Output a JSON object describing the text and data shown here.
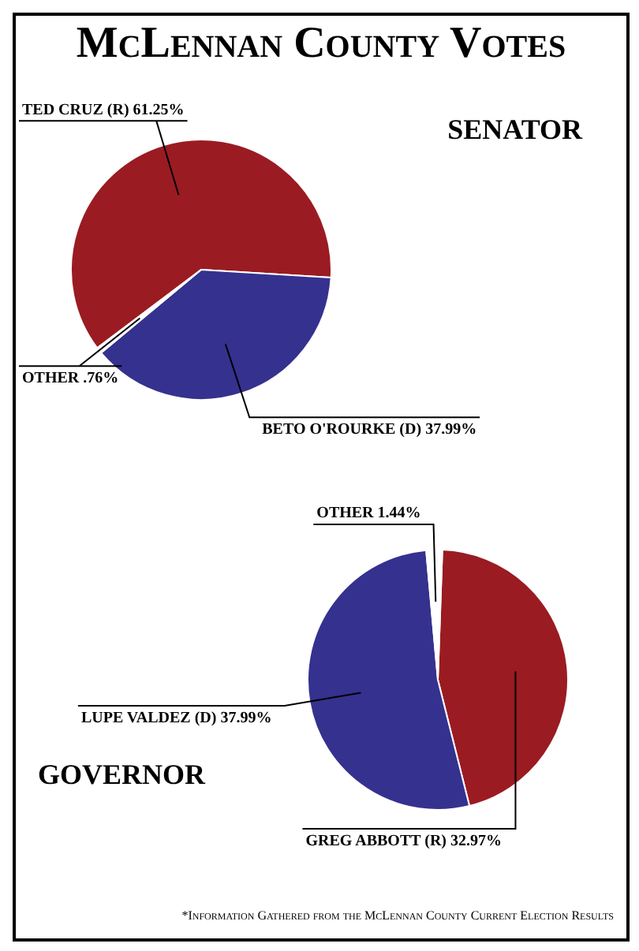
{
  "chart_data": [
    {
      "type": "pie",
      "title": "McLennan County Votes",
      "subtitle": "SENATOR",
      "categories": [
        "TED CRUZ (R)",
        "BETO O'ROURKE (D)",
        "OTHER"
      ],
      "values": [
        61.25,
        37.99,
        0.76
      ],
      "colors": [
        "#9b1b22",
        "#35318f",
        "#ffffff"
      ],
      "value_labels": [
        "61.25%",
        "37.99%",
        ".76%"
      ]
    },
    {
      "type": "pie",
      "title": "GOVERNOR",
      "categories": [
        "GREG ABBOTT (R)",
        "LUPE VALDEZ (D)",
        "OTHER"
      ],
      "values": [
        32.97,
        37.99,
        1.44
      ],
      "colors": [
        "#9b1b22",
        "#35318f",
        "#ffffff"
      ],
      "value_labels": [
        "32.97%",
        "37.99%",
        "1.44%"
      ],
      "annotations": [
        "*Information Gathered from the McLennan County Current Election Results"
      ]
    }
  ]
}
